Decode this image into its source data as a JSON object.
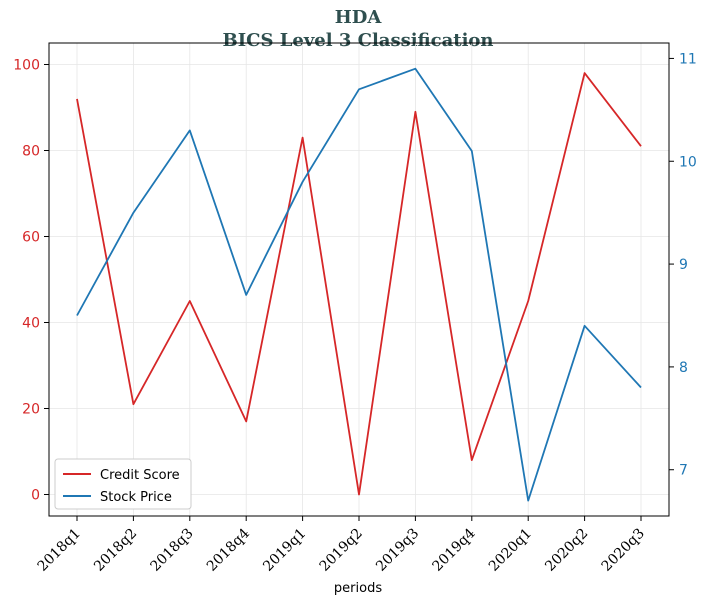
{
  "chart_data": {
    "type": "line",
    "title": "HDA",
    "subtitle": "BICS Level 3 Classification",
    "xlabel": "periods",
    "categories": [
      "2018q1",
      "2018q2",
      "2018q3",
      "2018q4",
      "2019q1",
      "2019q2",
      "2019q3",
      "2019q4",
      "2020q1",
      "2020q2",
      "2020q3"
    ],
    "series": [
      {
        "name": "Credit Score",
        "axis": "left",
        "color": "#d62728",
        "values": [
          92,
          21,
          45,
          17,
          83,
          0,
          89,
          8,
          45,
          98,
          81
        ]
      },
      {
        "name": "Stock Price",
        "axis": "right",
        "color": "#1f77b4",
        "values": [
          8.5,
          9.5,
          10.3,
          8.7,
          9.8,
          10.7,
          10.9,
          10.1,
          6.7,
          8.4,
          7.8
        ]
      }
    ],
    "y_left": {
      "ylim": [
        -5,
        105
      ],
      "ticks": [
        0,
        20,
        40,
        60,
        80,
        100
      ],
      "color": "#d62728"
    },
    "y_right": {
      "ylim": [
        6.55,
        11.15
      ],
      "ticks": [
        7,
        8,
        9,
        10,
        11
      ],
      "color": "#1f77b4"
    },
    "grid": true,
    "legend": "lower-left"
  }
}
